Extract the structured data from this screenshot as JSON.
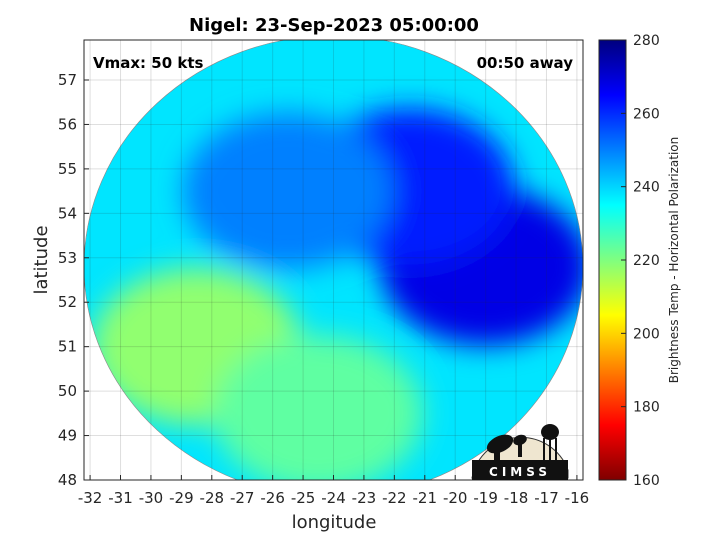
{
  "chart_data": {
    "type": "heatmap",
    "title": "Nigel: 23-Sep-2023 05:00:00",
    "xlabel": "longitude",
    "ylabel": "latitude",
    "xlim": [
      -32.2,
      -15.8
    ],
    "ylim": [
      48,
      57.9
    ],
    "xticks": [
      -32,
      -31,
      -30,
      -29,
      -28,
      -27,
      -26,
      -25,
      -24,
      -23,
      -22,
      -21,
      -20,
      -19,
      -18,
      -17,
      -16
    ],
    "yticks": [
      48,
      49,
      50,
      51,
      52,
      53,
      54,
      55,
      56,
      57
    ],
    "grid": true,
    "annotations": {
      "top_left": "Vmax: 50 kts",
      "top_right": "00:50 away"
    },
    "colorbar": {
      "label": "Brightness Temp - Horizontal Polarization",
      "range": [
        160,
        280
      ],
      "ticks": [
        160,
        180,
        200,
        220,
        240,
        260,
        280
      ],
      "colormap": "jet"
    },
    "swath": {
      "center": [
        -24.0,
        52.8
      ],
      "radius_lon": 8.2,
      "radius_lat": 5.2
    },
    "field_regions": [
      {
        "desc": "warm core cloud band",
        "center": [
          -19.0,
          52.8
        ],
        "value": 268
      },
      {
        "desc": "cold band NE",
        "center": [
          -21.5,
          54.6
        ],
        "value": 262
      },
      {
        "desc": "central overcast",
        "center": [
          -25.5,
          54.5
        ],
        "value": 250
      },
      {
        "desc": "southwest clear",
        "center": [
          -28.5,
          51.0
        ],
        "value": 218
      },
      {
        "desc": "south clear",
        "center": [
          -24.5,
          49.5
        ],
        "value": 224
      }
    ],
    "logo_text": "CIMSS"
  }
}
